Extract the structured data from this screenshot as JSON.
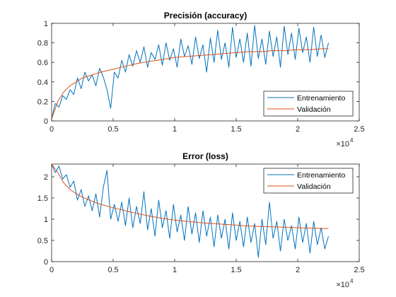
{
  "chart_data": [
    {
      "type": "line",
      "title": "Precisión (accuracy)",
      "xlabel": "",
      "ylabel": "",
      "xlim": [
        0,
        25000
      ],
      "ylim": [
        0,
        1
      ],
      "x_ticks": [
        0,
        5000,
        10000,
        15000,
        20000,
        25000
      ],
      "x_tick_labels": [
        "0",
        "0.5",
        "1",
        "1.5",
        "2",
        "2.5"
      ],
      "x_exponent": {
        "base": "×10",
        "power": "4"
      },
      "y_ticks": [
        0,
        0.2,
        0.4,
        0.6,
        0.8,
        1
      ],
      "y_tick_labels": [
        "0",
        "0.2",
        "0.4",
        "0.6",
        "0.8",
        "1"
      ],
      "grid": false,
      "legend_position": "bottom-right",
      "series": [
        {
          "name": "Entrenamiento",
          "color": "#0072BD",
          "points": [
            [
              0,
              0.02
            ],
            [
              300,
              0.18
            ],
            [
              600,
              0.14
            ],
            [
              900,
              0.26
            ],
            [
              1200,
              0.22
            ],
            [
              1500,
              0.32
            ],
            [
              1800,
              0.27
            ],
            [
              2100,
              0.44
            ],
            [
              2400,
              0.33
            ],
            [
              2700,
              0.5
            ],
            [
              3000,
              0.41
            ],
            [
              3300,
              0.47
            ],
            [
              3600,
              0.36
            ],
            [
              3900,
              0.54
            ],
            [
              4200,
              0.45
            ],
            [
              4500,
              0.32
            ],
            [
              4800,
              0.13
            ],
            [
              5100,
              0.5
            ],
            [
              5400,
              0.44
            ],
            [
              5700,
              0.62
            ],
            [
              6000,
              0.5
            ],
            [
              6300,
              0.68
            ],
            [
              6600,
              0.56
            ],
            [
              6900,
              0.72
            ],
            [
              7200,
              0.6
            ],
            [
              7500,
              0.76
            ],
            [
              7800,
              0.55
            ],
            [
              8100,
              0.7
            ],
            [
              8400,
              0.63
            ],
            [
              8700,
              0.78
            ],
            [
              9000,
              0.57
            ],
            [
              9300,
              0.8
            ],
            [
              9600,
              0.62
            ],
            [
              9900,
              0.74
            ],
            [
              10200,
              0.55
            ],
            [
              10500,
              0.84
            ],
            [
              10800,
              0.66
            ],
            [
              11100,
              0.77
            ],
            [
              11400,
              0.58
            ],
            [
              11700,
              0.86
            ],
            [
              12000,
              0.64
            ],
            [
              12300,
              0.78
            ],
            [
              12600,
              0.5
            ],
            [
              12900,
              0.85
            ],
            [
              13200,
              0.6
            ],
            [
              13500,
              0.93
            ],
            [
              13800,
              0.63
            ],
            [
              14100,
              0.8
            ],
            [
              14400,
              0.55
            ],
            [
              14700,
              0.96
            ],
            [
              15000,
              0.65
            ],
            [
              15300,
              0.84
            ],
            [
              15600,
              0.6
            ],
            [
              15900,
              0.9
            ],
            [
              16200,
              0.56
            ],
            [
              16500,
              0.98
            ],
            [
              16800,
              0.64
            ],
            [
              17100,
              0.84
            ],
            [
              17400,
              0.58
            ],
            [
              17700,
              0.92
            ],
            [
              18000,
              0.66
            ],
            [
              18300,
              0.86
            ],
            [
              18600,
              0.55
            ],
            [
              18900,
              0.97
            ],
            [
              19200,
              0.68
            ],
            [
              19500,
              0.9
            ],
            [
              19800,
              0.63
            ],
            [
              20100,
              0.95
            ],
            [
              20400,
              0.7
            ],
            [
              20700,
              0.86
            ],
            [
              21000,
              0.6
            ],
            [
              21300,
              0.96
            ],
            [
              21600,
              0.66
            ],
            [
              21900,
              0.88
            ],
            [
              22200,
              0.65
            ],
            [
              22500,
              0.8
            ]
          ]
        },
        {
          "name": "Validación",
          "color": "#D95319",
          "points": [
            [
              0,
              0.02
            ],
            [
              500,
              0.2
            ],
            [
              1000,
              0.3
            ],
            [
              1500,
              0.36
            ],
            [
              2000,
              0.4
            ],
            [
              2500,
              0.44
            ],
            [
              3000,
              0.46
            ],
            [
              3500,
              0.48
            ],
            [
              4000,
              0.5
            ],
            [
              5000,
              0.53
            ],
            [
              6000,
              0.56
            ],
            [
              7000,
              0.59
            ],
            [
              8000,
              0.61
            ],
            [
              9000,
              0.63
            ],
            [
              10000,
              0.65
            ],
            [
              11000,
              0.66
            ],
            [
              12000,
              0.67
            ],
            [
              13000,
              0.68
            ],
            [
              14000,
              0.69
            ],
            [
              15000,
              0.7
            ],
            [
              16000,
              0.71
            ],
            [
              17000,
              0.71
            ],
            [
              18000,
              0.72
            ],
            [
              19000,
              0.72
            ],
            [
              20000,
              0.73
            ],
            [
              21000,
              0.73
            ],
            [
              22000,
              0.74
            ],
            [
              22500,
              0.74
            ]
          ]
        }
      ]
    },
    {
      "type": "line",
      "title": "Error (loss)",
      "xlabel": "",
      "ylabel": "",
      "xlim": [
        0,
        25000
      ],
      "ylim": [
        0,
        2.3
      ],
      "x_ticks": [
        0,
        5000,
        10000,
        15000,
        20000,
        25000
      ],
      "x_tick_labels": [
        "0",
        "0.5",
        "1",
        "1.5",
        "2",
        "2.5"
      ],
      "x_exponent": {
        "base": "×10",
        "power": "4"
      },
      "y_ticks": [
        0,
        0.5,
        1,
        1.5,
        2
      ],
      "y_tick_labels": [
        "0",
        "0.5",
        "1",
        "1.5",
        "2"
      ],
      "grid": false,
      "legend_position": "top-right",
      "series": [
        {
          "name": "Entrenamiento",
          "color": "#0072BD",
          "points": [
            [
              0,
              2.3
            ],
            [
              300,
              2.1
            ],
            [
              600,
              2.25
            ],
            [
              900,
              1.95
            ],
            [
              1200,
              2.05
            ],
            [
              1500,
              1.75
            ],
            [
              1800,
              1.9
            ],
            [
              2100,
              1.45
            ],
            [
              2400,
              1.7
            ],
            [
              2700,
              1.3
            ],
            [
              3000,
              1.55
            ],
            [
              3300,
              1.2
            ],
            [
              3600,
              1.6
            ],
            [
              3900,
              1.05
            ],
            [
              4200,
              1.75
            ],
            [
              4500,
              2.15
            ],
            [
              4800,
              1.0
            ],
            [
              5100,
              1.35
            ],
            [
              5400,
              0.95
            ],
            [
              5700,
              1.4
            ],
            [
              6000,
              0.85
            ],
            [
              6300,
              1.5
            ],
            [
              6600,
              0.8
            ],
            [
              6900,
              1.3
            ],
            [
              7200,
              0.9
            ],
            [
              7500,
              1.65
            ],
            [
              7800,
              0.75
            ],
            [
              8100,
              1.25
            ],
            [
              8400,
              0.6
            ],
            [
              8700,
              1.45
            ],
            [
              9000,
              0.8
            ],
            [
              9300,
              1.2
            ],
            [
              9600,
              0.55
            ],
            [
              9900,
              1.35
            ],
            [
              10200,
              0.7
            ],
            [
              10500,
              1.1
            ],
            [
              10800,
              0.5
            ],
            [
              11100,
              1.3
            ],
            [
              11400,
              0.65
            ],
            [
              11700,
              1.15
            ],
            [
              12000,
              0.45
            ],
            [
              12300,
              1.2
            ],
            [
              12600,
              0.6
            ],
            [
              12900,
              1.05
            ],
            [
              13200,
              0.35
            ],
            [
              13500,
              1.1
            ],
            [
              13800,
              0.55
            ],
            [
              14100,
              1.0
            ],
            [
              14400,
              0.3
            ],
            [
              14700,
              1.15
            ],
            [
              15000,
              0.5
            ],
            [
              15300,
              0.95
            ],
            [
              15600,
              0.35
            ],
            [
              15900,
              1.05
            ],
            [
              16200,
              0.45
            ],
            [
              16500,
              0.9
            ],
            [
              16800,
              0.1
            ],
            [
              17100,
              1.0
            ],
            [
              17400,
              0.4
            ],
            [
              17700,
              1.4
            ],
            [
              18000,
              0.55
            ],
            [
              18300,
              0.95
            ],
            [
              18600,
              0.25
            ],
            [
              18900,
              1.0
            ],
            [
              19200,
              0.5
            ],
            [
              19500,
              0.85
            ],
            [
              19800,
              0.3
            ],
            [
              20100,
              1.05
            ],
            [
              20400,
              0.45
            ],
            [
              20700,
              0.9
            ],
            [
              21000,
              0.2
            ],
            [
              21300,
              0.95
            ],
            [
              21600,
              0.4
            ],
            [
              21900,
              0.8
            ],
            [
              22200,
              0.3
            ],
            [
              22500,
              0.6
            ]
          ]
        },
        {
          "name": "Validación",
          "color": "#D95319",
          "points": [
            [
              0,
              2.3
            ],
            [
              500,
              2.1
            ],
            [
              1000,
              1.85
            ],
            [
              1500,
              1.7
            ],
            [
              2000,
              1.6
            ],
            [
              2500,
              1.52
            ],
            [
              3000,
              1.46
            ],
            [
              3500,
              1.4
            ],
            [
              4000,
              1.35
            ],
            [
              5000,
              1.27
            ],
            [
              6000,
              1.2
            ],
            [
              7000,
              1.13
            ],
            [
              8000,
              1.07
            ],
            [
              9000,
              1.02
            ],
            [
              10000,
              0.98
            ],
            [
              11000,
              0.95
            ],
            [
              12000,
              0.92
            ],
            [
              13000,
              0.9
            ],
            [
              14000,
              0.88
            ],
            [
              15000,
              0.86
            ],
            [
              16000,
              0.84
            ],
            [
              17000,
              0.83
            ],
            [
              18000,
              0.82
            ],
            [
              19000,
              0.81
            ],
            [
              20000,
              0.8
            ],
            [
              21000,
              0.79
            ],
            [
              22000,
              0.78
            ],
            [
              22500,
              0.78
            ]
          ]
        }
      ]
    }
  ]
}
